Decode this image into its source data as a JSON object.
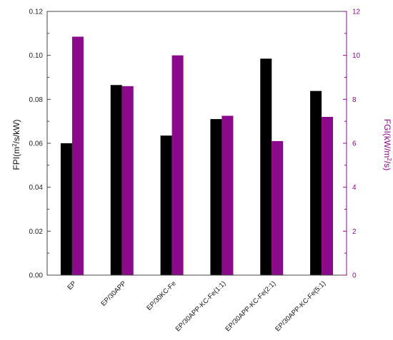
{
  "chart_data": {
    "type": "bar",
    "categories": [
      "EP",
      "EP/30APP",
      "EP/30KC-Fe",
      "EP/30APP-KC-Fe(1:1)",
      "EP/30APP-KC-Fe(2:1)",
      "EP/30APP-KC-Fe(5:1)"
    ],
    "series": [
      {
        "name": "FPI",
        "axis": "left",
        "color": "#000000",
        "values": [
          0.06,
          0.0865,
          0.0635,
          0.071,
          0.0985,
          0.0838
        ]
      },
      {
        "name": "FGI",
        "axis": "right",
        "color": "#8b0a8b",
        "values": [
          10.85,
          8.6,
          10.0,
          7.25,
          6.1,
          7.2
        ]
      }
    ],
    "left_axis": {
      "label": "FPI(m²/s/kW)",
      "label_main": "FPI(m",
      "label_sup": "2",
      "label_tail": "/s/kW)",
      "ylim": [
        0,
        0.12
      ],
      "ticks": [
        "0.00",
        "0.02",
        "0.04",
        "0.06",
        "0.08",
        "0.10",
        "0.12"
      ]
    },
    "right_axis": {
      "label": "FGI(kW/m²/s)",
      "label_main": "FGI(kW/m",
      "label_sup": "2",
      "label_tail": "/s)",
      "ylim": [
        0,
        12
      ],
      "ticks": [
        "0",
        "2",
        "4",
        "6",
        "8",
        "10",
        "12"
      ],
      "color": "#8b0a8b"
    },
    "title": "",
    "legend": "none",
    "grid": false
  }
}
